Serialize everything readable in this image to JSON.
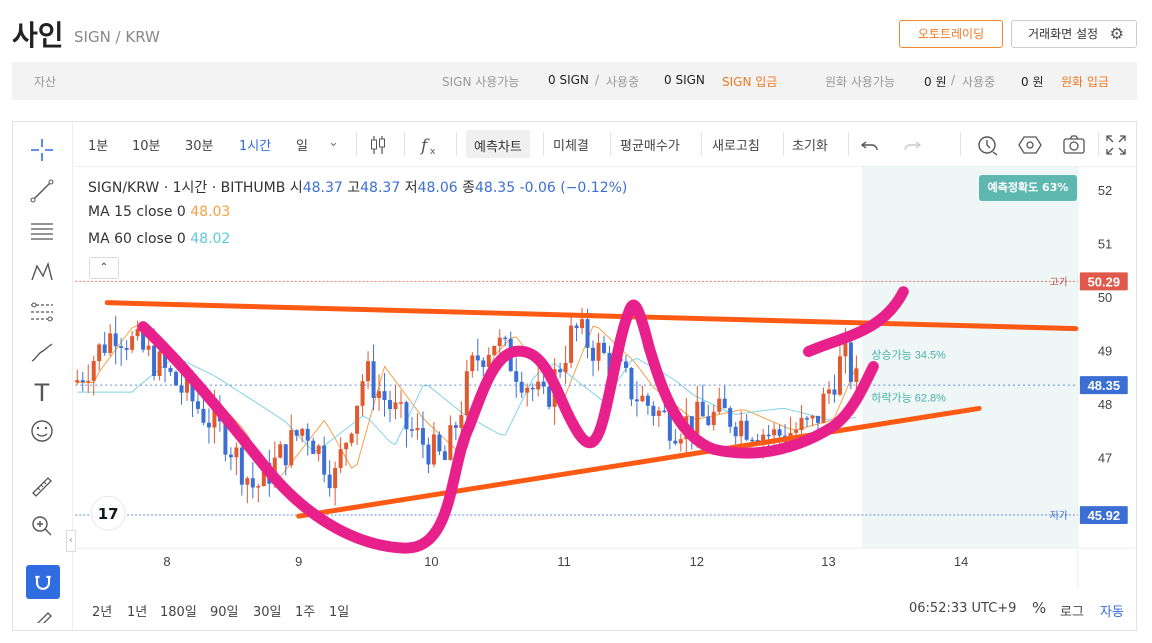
{
  "header": {
    "coin_name": "사인",
    "pair": "SIGN / KRW",
    "auto_trading_label": "오토트레이딩",
    "settings_label": "거래화면 설정"
  },
  "assets": {
    "label": "자산",
    "sign_available_label": "SIGN 사용가능",
    "sign_available_value": "0 SIGN",
    "slash": "/",
    "sign_in_use_label": "사용중",
    "sign_in_use_value": "0 SIGN",
    "sign_deposit_label": "SIGN 입금",
    "krw_available_label": "원화 사용가능",
    "krw_available_value": "0 원",
    "krw_in_use_label": "사용중",
    "krw_in_use_value": "0 원",
    "krw_deposit_label": "원화 입금"
  },
  "toolbar": {
    "intervals": [
      "1분",
      "10분",
      "30분",
      "1시간",
      "일"
    ],
    "active_interval": "1시간",
    "buttons": [
      "예측차트",
      "미체결",
      "평균매수가",
      "새로고침",
      "초기화"
    ]
  },
  "legend": {
    "title": "SIGN/KRW · 1시간 · BITHUMB",
    "open_label": "시",
    "open": "48.37",
    "high_label": "고",
    "high": "48.37",
    "low_label": "저",
    "low": "48.06",
    "close_label": "종",
    "close": "48.35",
    "change": "-0.06 (−0.12%)",
    "ma15_label": "MA 15 close 0",
    "ma15_value": "48.03",
    "ma60_label": "MA 60 close 0",
    "ma60_value": "48.02"
  },
  "prediction": {
    "accuracy": "예측정확도 63%",
    "up_prob": "상승가능 34.5%",
    "down_prob": "하락가능 62.8%"
  },
  "price_axis": {
    "ticks": [
      "52",
      "51",
      "50",
      "49",
      "48",
      "47"
    ],
    "high_tag": "고가",
    "high_value": "50.29",
    "current_value": "48.35",
    "low_tag": "저가",
    "low_value": "45.92"
  },
  "time_axis": {
    "ticks": [
      "8",
      "9",
      "10",
      "11",
      "12",
      "13",
      "14"
    ]
  },
  "bottom": {
    "ranges": [
      "2년",
      "1년",
      "180일",
      "90일",
      "30일",
      "1주",
      "1일"
    ],
    "clock": "06:52:33 UTC+9",
    "percent": "%",
    "log": "로그",
    "auto": "자동"
  },
  "colors": {
    "up": "#e0592f",
    "down": "#3c6fd3",
    "accent": "#2f6ce0",
    "orange": "#f07820",
    "high_tag": "#e0594a",
    "low_tag": "#3c6fd3",
    "drawing_pink": "#e8208c",
    "drawing_orange": "#ff5a14",
    "prediction_teal": "#5fb8b0"
  }
}
